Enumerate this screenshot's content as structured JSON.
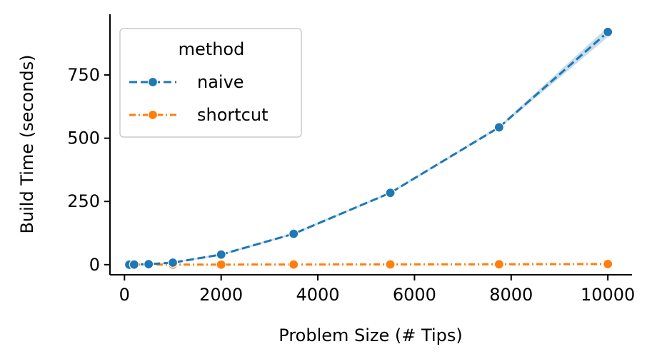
{
  "chart_data": {
    "type": "line",
    "xlabel": "Problem Size (# Tips)",
    "ylabel": "Build Time (seconds)",
    "xlim": [
      -300,
      10500
    ],
    "ylim": [
      -40,
      990
    ],
    "x_ticks": [
      0,
      2000,
      4000,
      6000,
      8000,
      10000
    ],
    "x_tick_labels": [
      "0",
      "2000",
      "4000",
      "6000",
      "8000",
      "10000"
    ],
    "y_ticks": [
      0,
      250,
      500,
      750
    ],
    "y_tick_labels": [
      "0",
      "250",
      "500",
      "750"
    ],
    "grid": false,
    "legend": {
      "title": "method",
      "position": "top-left",
      "entries": [
        "naive",
        "shortcut"
      ]
    },
    "series": [
      {
        "name": "naive",
        "color": "#1f77b4",
        "linestyle": "dashed",
        "marker": "circle",
        "x": [
          100,
          200,
          500,
          1000,
          2000,
          3500,
          5500,
          7750,
          10000
        ],
        "y": [
          0,
          0.5,
          2,
          8,
          40,
          122,
          284,
          543,
          920
        ],
        "ci_low": [
          0,
          0.3,
          1.5,
          6,
          37,
          118,
          280,
          538,
          900
        ],
        "ci_high": [
          0.2,
          0.8,
          2.6,
          10,
          43,
          126,
          288,
          548,
          940
        ]
      },
      {
        "name": "shortcut",
        "color": "#ff7f0e",
        "linestyle": "dashdot",
        "marker": "circle",
        "x": [
          100,
          200,
          500,
          1000,
          2000,
          3500,
          5500,
          7750,
          10000
        ],
        "y": [
          0,
          0,
          0.1,
          0.2,
          0.3,
          0.6,
          1.0,
          1.5,
          2.5
        ]
      }
    ]
  }
}
